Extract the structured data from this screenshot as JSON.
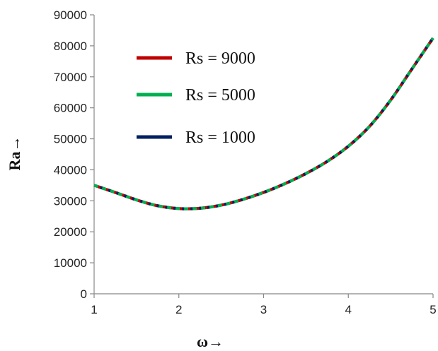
{
  "chart_data": {
    "type": "line",
    "xlabel": "ω→",
    "ylabel": "Ra→",
    "xlim": [
      1,
      5
    ],
    "ylim": [
      0,
      90000
    ],
    "x_ticks": [
      "1",
      "2",
      "3",
      "4",
      "5"
    ],
    "y_ticks": [
      "0",
      "10000",
      "20000",
      "30000",
      "40000",
      "50000",
      "60000",
      "70000",
      "80000",
      "90000"
    ],
    "grid": false,
    "legend_position": "top-left",
    "series": [
      {
        "name": "Rs = 9000",
        "color": "#c00000",
        "x": [
          1,
          1.25,
          1.5,
          1.75,
          2,
          2.25,
          2.5,
          2.75,
          3,
          3.25,
          3.5,
          3.75,
          4,
          4.25,
          4.5,
          4.75,
          5
        ],
        "y": [
          35000,
          32700,
          30300,
          28400,
          27500,
          27600,
          28600,
          30400,
          32700,
          35500,
          38800,
          42700,
          47600,
          54000,
          62500,
          72500,
          82500
        ]
      },
      {
        "name": "Rs = 5000",
        "color": "#00b050",
        "x": [
          1,
          1.25,
          1.5,
          1.75,
          2,
          2.25,
          2.5,
          2.75,
          3,
          3.25,
          3.5,
          3.75,
          4,
          4.25,
          4.5,
          4.75,
          5
        ],
        "y": [
          35000,
          32700,
          30300,
          28400,
          27500,
          27600,
          28600,
          30400,
          32700,
          35500,
          38800,
          42700,
          47600,
          54000,
          62500,
          72500,
          82500
        ]
      },
      {
        "name": "Rs = 1000",
        "color": "#002060",
        "x": [
          1,
          1.25,
          1.5,
          1.75,
          2,
          2.25,
          2.5,
          2.75,
          3,
          3.25,
          3.5,
          3.75,
          4,
          4.25,
          4.5,
          4.75,
          5
        ],
        "y": [
          35000,
          32700,
          30300,
          28400,
          27500,
          27600,
          28600,
          30400,
          32700,
          35500,
          38800,
          42700,
          47600,
          54000,
          62500,
          72500,
          82500
        ]
      }
    ]
  }
}
